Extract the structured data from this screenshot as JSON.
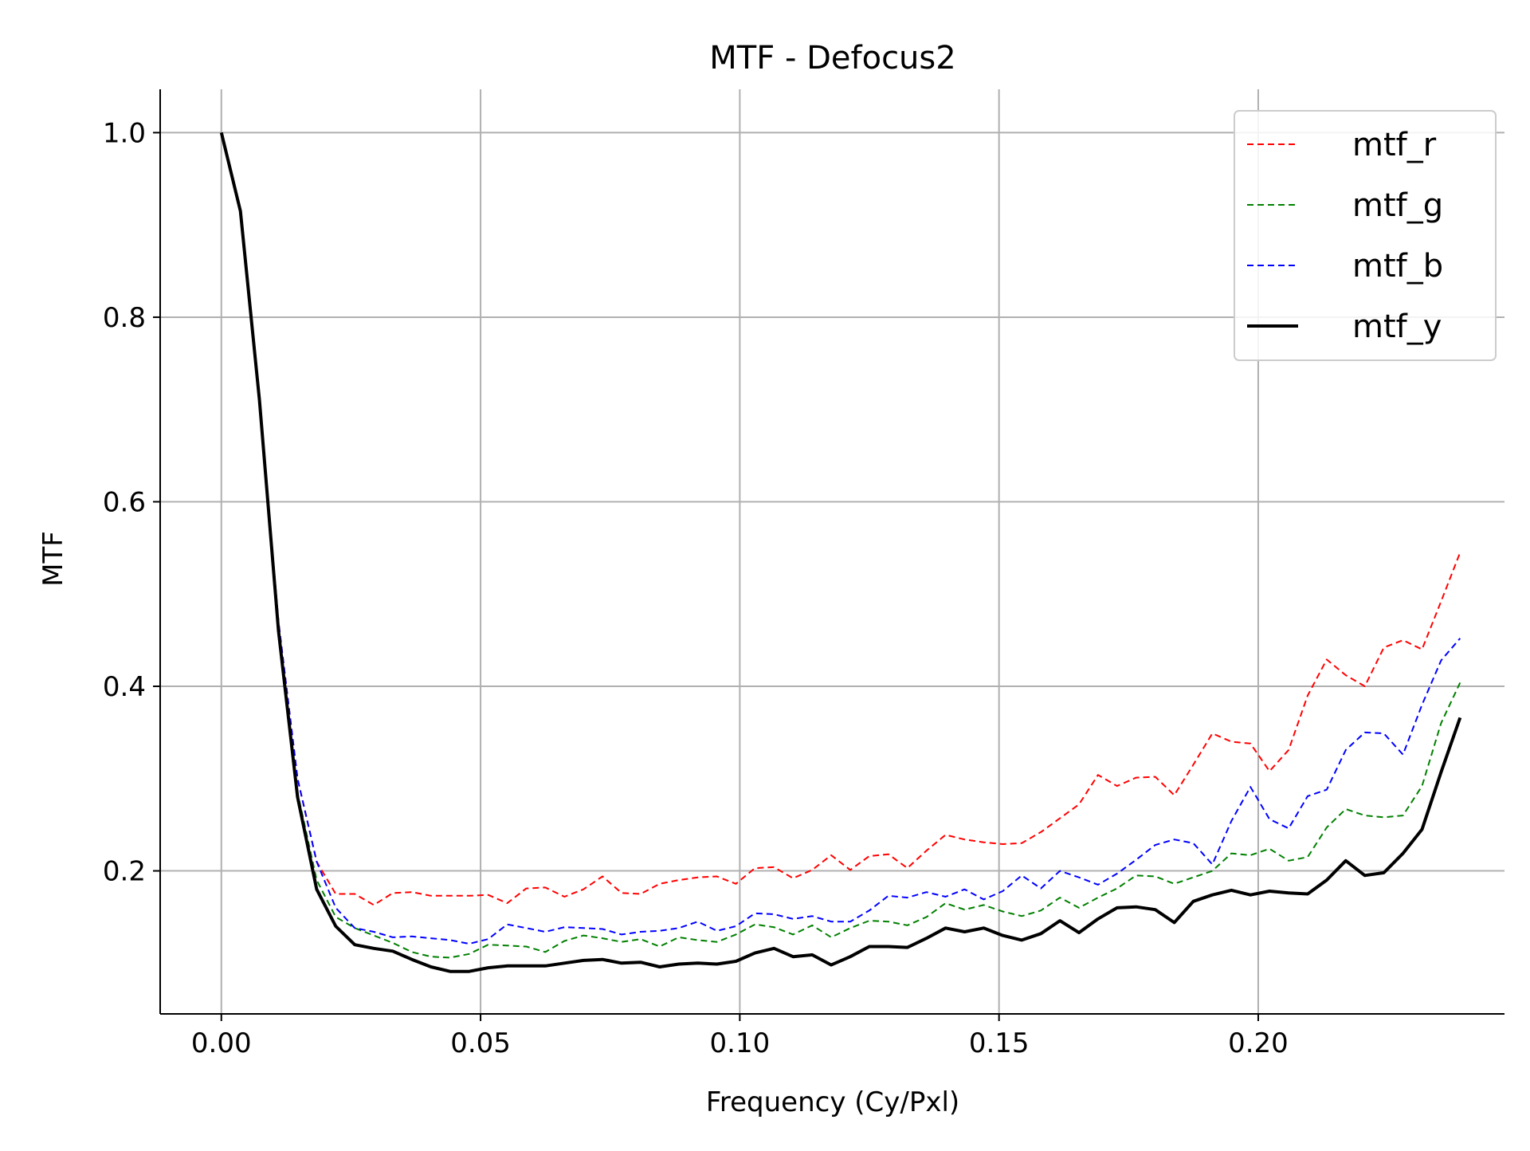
{
  "chart_data": {
    "type": "line",
    "title": "MTF - Defocus2",
    "xlabel": "Frequency (Cy/Pxl)",
    "ylabel": "MTF",
    "xlim": [
      -0.0118,
      0.2475
    ],
    "ylim": [
      0.045,
      1.047
    ],
    "grid": true,
    "legend_position": "top-right",
    "xticks": [
      0.0,
      0.05,
      0.1,
      0.15,
      0.2
    ],
    "xtick_labels": [
      "0.00",
      "0.05",
      "0.10",
      "0.15",
      "0.20"
    ],
    "yticks": [
      0.2,
      0.4,
      0.6,
      0.8,
      1.0
    ],
    "ytick_labels": [
      "0.2",
      "0.4",
      "0.6",
      "0.8",
      "1.0"
    ],
    "x_step": 0.003676,
    "series": [
      {
        "name": "mtf_r",
        "color": "#ff0000",
        "style": "dashed",
        "width": 2,
        "values": [
          1.0,
          0.915,
          0.71,
          0.47,
          0.3,
          0.21,
          0.175,
          0.175,
          0.163,
          0.176,
          0.177,
          0.173,
          0.173,
          0.173,
          0.174,
          0.165,
          0.181,
          0.182,
          0.172,
          0.18,
          0.194,
          0.176,
          0.175,
          0.186,
          0.19,
          0.193,
          0.194,
          0.186,
          0.203,
          0.204,
          0.192,
          0.201,
          0.217,
          0.201,
          0.216,
          0.218,
          0.203,
          0.222,
          0.239,
          0.234,
          0.231,
          0.229,
          0.23,
          0.242,
          0.257,
          0.272,
          0.304,
          0.292,
          0.301,
          0.302,
          0.282,
          0.315,
          0.349,
          0.34,
          0.338,
          0.308,
          0.331,
          0.39,
          0.429,
          0.412,
          0.4,
          0.442,
          0.45,
          0.44,
          0.492,
          0.545
        ]
      },
      {
        "name": "mtf_g",
        "color": "#008000",
        "style": "dashed",
        "width": 2,
        "values": [
          1.0,
          0.915,
          0.71,
          0.46,
          0.285,
          0.19,
          0.15,
          0.138,
          0.13,
          0.122,
          0.112,
          0.107,
          0.106,
          0.11,
          0.12,
          0.119,
          0.118,
          0.112,
          0.124,
          0.13,
          0.127,
          0.123,
          0.126,
          0.118,
          0.128,
          0.125,
          0.123,
          0.131,
          0.142,
          0.139,
          0.131,
          0.141,
          0.128,
          0.138,
          0.146,
          0.145,
          0.141,
          0.15,
          0.165,
          0.158,
          0.163,
          0.156,
          0.151,
          0.157,
          0.171,
          0.16,
          0.171,
          0.181,
          0.195,
          0.194,
          0.186,
          0.193,
          0.2,
          0.219,
          0.217,
          0.224,
          0.211,
          0.215,
          0.247,
          0.267,
          0.26,
          0.258,
          0.26,
          0.292,
          0.36,
          0.404
        ]
      },
      {
        "name": "mtf_b",
        "color": "#0000ff",
        "style": "dashed",
        "width": 2,
        "values": [
          1.0,
          0.915,
          0.71,
          0.47,
          0.3,
          0.21,
          0.16,
          0.138,
          0.134,
          0.128,
          0.129,
          0.127,
          0.125,
          0.121,
          0.126,
          0.142,
          0.138,
          0.134,
          0.139,
          0.138,
          0.137,
          0.131,
          0.134,
          0.135,
          0.138,
          0.145,
          0.135,
          0.14,
          0.154,
          0.153,
          0.148,
          0.151,
          0.145,
          0.145,
          0.157,
          0.173,
          0.171,
          0.177,
          0.172,
          0.18,
          0.169,
          0.178,
          0.195,
          0.181,
          0.2,
          0.193,
          0.185,
          0.197,
          0.212,
          0.228,
          0.234,
          0.23,
          0.207,
          0.254,
          0.291,
          0.256,
          0.246,
          0.281,
          0.288,
          0.331,
          0.35,
          0.349,
          0.326,
          0.38,
          0.428,
          0.452
        ]
      },
      {
        "name": "mtf_y",
        "color": "#000000",
        "style": "solid",
        "width": 4,
        "values": [
          1.0,
          0.915,
          0.71,
          0.46,
          0.28,
          0.18,
          0.14,
          0.12,
          0.116,
          0.113,
          0.104,
          0.096,
          0.091,
          0.091,
          0.095,
          0.097,
          0.097,
          0.097,
          0.1,
          0.103,
          0.104,
          0.1,
          0.101,
          0.096,
          0.099,
          0.1,
          0.099,
          0.102,
          0.111,
          0.116,
          0.107,
          0.109,
          0.098,
          0.107,
          0.118,
          0.118,
          0.117,
          0.127,
          0.138,
          0.134,
          0.138,
          0.13,
          0.125,
          0.132,
          0.146,
          0.133,
          0.148,
          0.16,
          0.161,
          0.158,
          0.144,
          0.167,
          0.174,
          0.179,
          0.174,
          0.178,
          0.176,
          0.175,
          0.19,
          0.211,
          0.195,
          0.198,
          0.219,
          0.245,
          0.307,
          0.366
        ]
      }
    ]
  }
}
